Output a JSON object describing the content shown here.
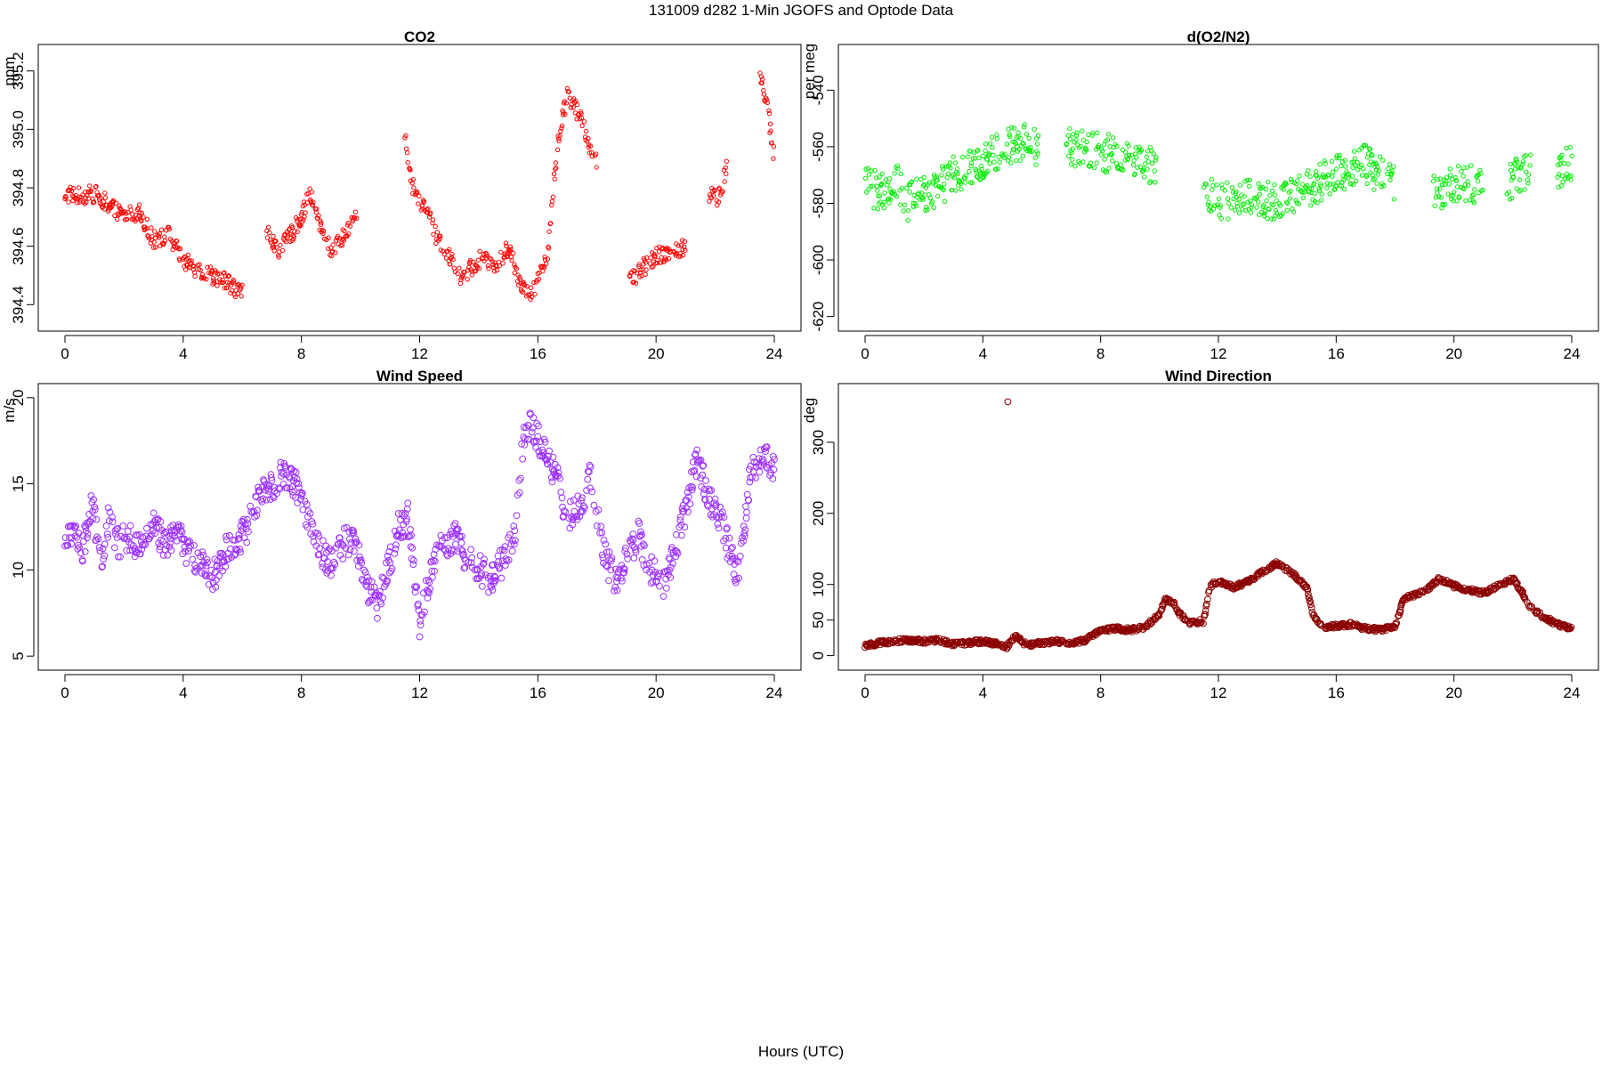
{
  "page": {
    "title": "131009   d282   1-Min  JGOFS and Optode Data",
    "xlabel": "Hours (UTC)"
  },
  "chart_data": [
    {
      "type": "scatter",
      "title": "CO2",
      "xlabel": "",
      "ylabel": "ppm",
      "xlim": [
        0,
        24
      ],
      "ylim": [
        394.34,
        395.26
      ],
      "xticks": [
        0,
        4,
        8,
        12,
        16,
        20,
        24
      ],
      "yticks": [
        394.4,
        394.6,
        394.8,
        395.0,
        395.2
      ],
      "ytick_labels": [
        "394.4",
        "394.6",
        "394.8",
        "395.0",
        "395.2"
      ],
      "color": "#ff0000",
      "marker_radius": 2.2,
      "noise": 0.03,
      "gaps": [
        [
          6.0,
          6.8
        ],
        [
          9.9,
          11.5
        ],
        [
          18.0,
          19.1
        ],
        [
          21.0,
          21.8
        ],
        [
          22.4,
          23.5
        ]
      ],
      "series": [
        {
          "x": [
            0,
            0.5,
            1.0,
            1.5,
            2.0,
            2.5,
            3.0,
            3.5,
            4.0,
            4.5,
            5.0,
            5.5,
            5.9,
            6.8,
            7.2,
            7.6,
            8.0,
            8.3,
            8.6,
            9.0,
            9.5,
            9.9,
            11.5,
            11.8,
            12.2,
            12.6,
            13.0,
            13.4,
            13.8,
            14.2,
            14.6,
            15.0,
            15.4,
            15.8,
            16.3,
            16.7,
            17.0,
            17.4,
            17.8,
            18.0,
            19.1,
            19.5,
            20.0,
            20.5,
            21.0,
            21.8,
            22.1,
            22.4,
            23.5,
            23.8,
            24.0
          ],
          "y": [
            394.78,
            394.77,
            394.78,
            394.74,
            394.7,
            394.72,
            394.62,
            394.64,
            394.55,
            394.52,
            394.5,
            394.48,
            394.44,
            394.66,
            394.58,
            394.63,
            394.7,
            394.78,
            394.68,
            394.58,
            394.64,
            394.73,
            394.97,
            394.79,
            394.73,
            394.62,
            394.56,
            394.5,
            394.53,
            394.57,
            394.52,
            394.6,
            394.48,
            394.44,
            394.55,
            394.98,
            395.12,
            395.05,
            394.93,
            394.88,
            394.48,
            394.52,
            394.57,
            394.58,
            394.6,
            394.78,
            394.76,
            394.87,
            395.2,
            395.05,
            394.9
          ]
        }
      ]
    },
    {
      "type": "scatter",
      "title": "d(O2/N2)",
      "xlabel": "",
      "ylabel": "per meg",
      "xlim": [
        0,
        24
      ],
      "ylim": [
        -622,
        -527
      ],
      "xticks": [
        0,
        4,
        8,
        12,
        16,
        20,
        24
      ],
      "yticks": [
        -620,
        -600,
        -580,
        -560,
        -540
      ],
      "ytick_labels": [
        "-620",
        "-600",
        "-580",
        "-560",
        "-540"
      ],
      "color": "#00ee00",
      "marker_radius": 2.2,
      "noise": 7,
      "gaps": [
        [
          5.9,
          6.8
        ],
        [
          9.9,
          11.5
        ],
        [
          18.0,
          19.3
        ],
        [
          21.0,
          21.8
        ],
        [
          22.6,
          23.5
        ]
      ],
      "series": [
        {
          "x": [
            0,
            0.5,
            1.0,
            1.5,
            2.0,
            2.5,
            3.0,
            3.5,
            4.0,
            4.5,
            5.0,
            5.5,
            5.9,
            6.8,
            7.5,
            8.0,
            8.5,
            9.0,
            9.5,
            9.9,
            11.5,
            12.0,
            12.5,
            13.0,
            13.5,
            14.0,
            14.5,
            15.0,
            15.5,
            16.0,
            16.5,
            17.0,
            17.5,
            18.0,
            19.3,
            19.8,
            20.2,
            20.6,
            21.0,
            21.8,
            22.3,
            22.6,
            23.5,
            24.0
          ],
          "y": [
            -574,
            -576,
            -572,
            -580,
            -576,
            -574,
            -570,
            -568,
            -564,
            -562,
            -560,
            -558,
            -561,
            -560,
            -560,
            -562,
            -563,
            -565,
            -566,
            -567,
            -576,
            -580,
            -579,
            -578,
            -578,
            -580,
            -577,
            -575,
            -572,
            -570,
            -568,
            -566,
            -570,
            -574,
            -576,
            -574,
            -573,
            -572,
            -576,
            -572,
            -570,
            -568,
            -570,
            -565
          ]
        }
      ]
    },
    {
      "type": "scatter",
      "title": "Wind Speed",
      "xlabel": "",
      "ylabel": "m/s",
      "xlim": [
        0,
        24
      ],
      "ylim": [
        4.7,
        20.3
      ],
      "xticks": [
        0,
        4,
        8,
        12,
        16,
        20,
        24
      ],
      "yticks": [
        5,
        10,
        15,
        20
      ],
      "ytick_labels": [
        "5",
        "10",
        "15",
        "20"
      ],
      "color": "#9b30ff",
      "marker_radius": 3.4,
      "noise": 0.9,
      "gaps": [],
      "series": [
        {
          "x": [
            0,
            0.3,
            0.6,
            0.9,
            1.2,
            1.5,
            1.8,
            2.2,
            2.6,
            3.0,
            3.4,
            3.8,
            4.2,
            4.6,
            5.0,
            5.4,
            5.8,
            6.2,
            6.6,
            7.0,
            7.4,
            7.8,
            8.2,
            8.6,
            9.0,
            9.4,
            9.8,
            10.2,
            10.6,
            11.0,
            11.3,
            11.6,
            12.0,
            12.4,
            12.8,
            13.2,
            13.6,
            14.0,
            14.4,
            14.8,
            15.2,
            15.5,
            15.8,
            16.2,
            16.6,
            17.0,
            17.4,
            17.8,
            18.2,
            18.6,
            19.0,
            19.4,
            19.8,
            20.2,
            20.6,
            21.0,
            21.4,
            21.8,
            22.2,
            22.5,
            22.8,
            23.2,
            23.6,
            24.0
          ],
          "y": [
            11.5,
            12.5,
            11.0,
            14.0,
            10.5,
            13.0,
            11.5,
            12.0,
            11.0,
            12.5,
            11.5,
            12.0,
            11.0,
            10.5,
            9.5,
            11.0,
            11.5,
            12.5,
            14.5,
            15.0,
            15.5,
            15.0,
            13.0,
            11.0,
            10.5,
            11.5,
            12.0,
            9.0,
            8.0,
            10.5,
            12.5,
            13.0,
            7.0,
            10.0,
            11.5,
            12.0,
            10.5,
            10.0,
            9.5,
            10.5,
            12.0,
            17.5,
            18.5,
            17.0,
            15.5,
            13.0,
            13.5,
            15.5,
            11.0,
            9.5,
            10.5,
            12.0,
            10.0,
            9.0,
            11.0,
            13.5,
            16.5,
            14.0,
            13.0,
            11.0,
            9.5,
            16.0,
            16.5,
            16.0
          ]
        }
      ]
    },
    {
      "type": "scatter",
      "title": "Wind Direction",
      "xlabel": "",
      "ylabel": "deg",
      "xlim": [
        0,
        24
      ],
      "ylim": [
        -8,
        370
      ],
      "xticks": [
        0,
        4,
        8,
        12,
        16,
        20,
        24
      ],
      "yticks": [
        0,
        50,
        100,
        200,
        300
      ],
      "ytick_labels": [
        "0",
        "50",
        "100",
        "200",
        "300"
      ],
      "color": "#8b0000",
      "marker_radius": 3.4,
      "noise": 3,
      "gaps": [],
      "outliers": [
        {
          "x": 4.85,
          "y": 357
        }
      ],
      "series": [
        {
          "x": [
            0,
            0.5,
            1.0,
            1.5,
            2.0,
            2.5,
            3.0,
            3.5,
            4.0,
            4.5,
            4.8,
            5.1,
            5.5,
            6.0,
            6.5,
            7.0,
            7.5,
            8.0,
            8.5,
            9.0,
            9.5,
            10.0,
            10.2,
            10.5,
            10.7,
            11.0,
            11.5,
            11.7,
            12.0,
            12.5,
            13.0,
            13.5,
            14.0,
            14.3,
            14.6,
            15.0,
            15.2,
            15.5,
            16.0,
            16.5,
            17.0,
            17.5,
            18.0,
            18.3,
            18.6,
            19.0,
            19.5,
            20.0,
            20.5,
            21.0,
            21.5,
            22.0,
            22.3,
            22.6,
            23.0,
            23.5,
            24.0
          ],
          "y": [
            14,
            18,
            20,
            22,
            20,
            22,
            16,
            18,
            20,
            16,
            12,
            28,
            14,
            18,
            20,
            16,
            22,
            36,
            38,
            36,
            40,
            58,
            80,
            72,
            58,
            46,
            48,
            98,
            104,
            96,
            104,
            118,
            130,
            122,
            112,
            96,
            60,
            40,
            42,
            44,
            38,
            36,
            42,
            80,
            84,
            90,
            108,
            98,
            92,
            88,
            98,
            108,
            90,
            68,
            56,
            44,
            38
          ]
        }
      ]
    }
  ]
}
